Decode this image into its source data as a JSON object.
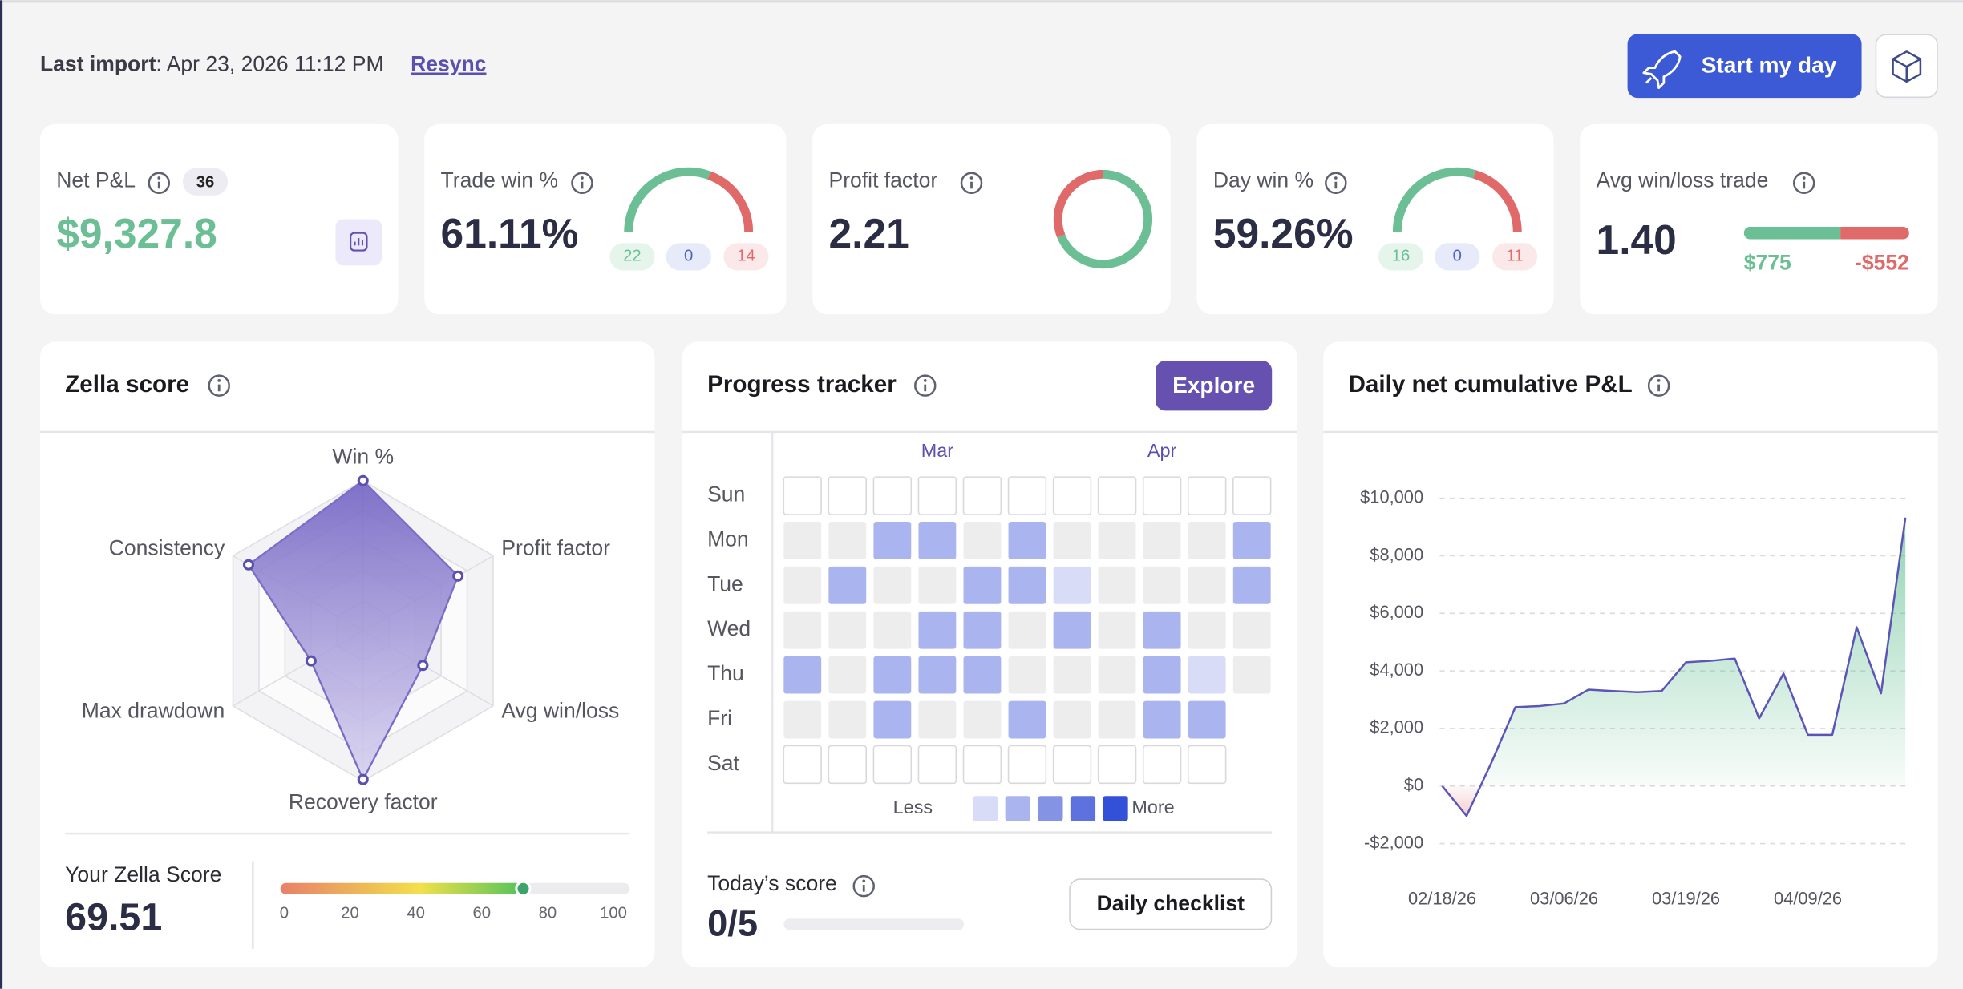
{
  "header": {
    "last_import_label": "Last import",
    "last_import_value": ": Apr 23, 2026 11:12 PM",
    "resync": "Resync",
    "start_button": "Start my day"
  },
  "stats": {
    "net_pnl": {
      "label": "Net P&L",
      "count": 36,
      "value": "$9,327.8"
    },
    "trade_win": {
      "label": "Trade win %",
      "value": "61.11%",
      "wins": 22,
      "even": 0,
      "losses": 14
    },
    "profit_factor": {
      "label": "Profit factor",
      "value": 2.21
    },
    "day_win": {
      "label": "Day win %",
      "value": "59.26%",
      "wins": 16,
      "even": 0,
      "losses": 11
    },
    "avg_win_loss": {
      "label": "Avg win/loss trade",
      "value": "1.40",
      "avg_win": {
        "value": 775,
        "label": "$775"
      },
      "avg_loss": {
        "value": -552,
        "label": "-$552"
      }
    }
  },
  "zella": {
    "title": "Zella score",
    "chart_data": {
      "type": "radar",
      "categories": [
        "Win %",
        "Profit factor",
        "Avg win/loss",
        "Recovery factor",
        "Max drawdown",
        "Consistency"
      ],
      "values": [
        100,
        73,
        46,
        99,
        40,
        88
      ],
      "rlim": [
        0,
        100
      ],
      "color": "#7b6cc7"
    },
    "score_label": "Your Zella Score",
    "score": 69.51,
    "scale": {
      "xlim": [
        0,
        100
      ],
      "xticks": [
        0,
        20,
        40,
        60,
        80,
        100
      ]
    }
  },
  "progress": {
    "title": "Progress tracker",
    "explore": "Explore",
    "months": [
      null,
      null,
      null,
      "Mar",
      null,
      null,
      null,
      null,
      "Apr",
      null,
      null
    ],
    "days": [
      "Sun",
      "Mon",
      "Tue",
      "Wed",
      "Thu",
      "Fri",
      "Sat"
    ],
    "cells": [
      [
        null,
        null,
        null,
        null,
        null,
        null,
        null,
        null,
        null,
        null,
        null
      ],
      [
        0,
        0,
        2,
        2,
        0,
        2,
        0,
        0,
        0,
        0,
        2
      ],
      [
        0,
        2,
        0,
        0,
        2,
        2,
        1,
        0,
        0,
        0,
        2
      ],
      [
        0,
        0,
        0,
        2,
        2,
        0,
        2,
        0,
        2,
        0,
        0
      ],
      [
        2,
        0,
        2,
        2,
        2,
        0,
        0,
        0,
        2,
        1,
        0
      ],
      [
        0,
        0,
        2,
        0,
        0,
        2,
        0,
        0,
        2,
        2
      ],
      [
        null,
        null,
        null,
        null,
        null,
        null,
        null,
        null,
        null,
        null
      ]
    ],
    "legend_less": "Less",
    "legend_more": "More",
    "legend_colors": [
      "#d9dcf6",
      "#aab4ee",
      "#8593e4",
      "#5d72de",
      "#3350d8"
    ],
    "today_label": "Today’s score",
    "today_score": "0/5",
    "checklist": "Daily checklist"
  },
  "cumulative": {
    "title": "Daily net cumulative P&L",
    "chart_data": {
      "type": "area",
      "categories": [
        "02/18/26",
        null,
        null,
        null,
        null,
        "03/06/26",
        null,
        null,
        null,
        null,
        "03/19/26",
        null,
        null,
        null,
        null,
        "04/09/26",
        null,
        null,
        null,
        null
      ],
      "values": [
        0,
        -1040,
        780,
        2740,
        2780,
        2870,
        3350,
        3300,
        3260,
        3300,
        4300,
        4350,
        4430,
        2350,
        3910,
        1780,
        1780,
        5520,
        3220,
        9327.8
      ],
      "ylim": [
        -2000,
        10000
      ],
      "yticks": [
        {
          "value": -2000,
          "label": "-$2,000"
        },
        {
          "value": 0,
          "label": "$0"
        },
        {
          "value": 2000,
          "label": "$2,000"
        },
        {
          "value": 4000,
          "label": "$4,000"
        },
        {
          "value": 6000,
          "label": "$6,000"
        },
        {
          "value": 8000,
          "label": "$8,000"
        },
        {
          "value": 10000,
          "label": "$10,000"
        }
      ],
      "grid": true,
      "color": "#5b55b8"
    }
  }
}
